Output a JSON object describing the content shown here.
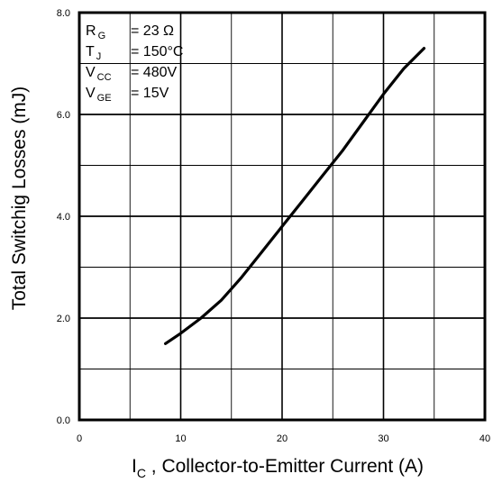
{
  "chart_data": {
    "type": "line",
    "title": "",
    "xlabel_main": "I",
    "xlabel_sub": "C",
    "xlabel_rest": " , Collector-to-Emitter Current (A)",
    "ylabel": "Total Switchig Losses (mJ)",
    "xlim": [
      0,
      40
    ],
    "ylim": [
      0,
      8
    ],
    "x_ticks": [
      0,
      10,
      20,
      30,
      40
    ],
    "x_tick_labels": [
      "0",
      "10",
      "20",
      "30",
      "40"
    ],
    "y_ticks": [
      0,
      2,
      4,
      6,
      8
    ],
    "y_tick_labels": [
      "0.0",
      "2.0",
      "4.0",
      "6.0",
      "8.0"
    ],
    "grid": true,
    "conditions": [
      {
        "symbol": "R",
        "sub": "G",
        "value": "= 23 Ω"
      },
      {
        "symbol": "T",
        "sub": "J",
        "value": "= 150°C"
      },
      {
        "symbol": "V",
        "sub": "CC",
        "value": "= 480V"
      },
      {
        "symbol": "V",
        "sub": "GE",
        "value": "= 15V"
      }
    ],
    "series": [
      {
        "x": [
          8.5,
          10,
          12,
          14,
          16,
          18,
          20,
          22,
          24,
          26,
          28,
          30,
          32,
          34
        ],
        "y": [
          1.5,
          1.7,
          2.0,
          2.35,
          2.8,
          3.3,
          3.8,
          4.3,
          4.8,
          5.3,
          5.85,
          6.4,
          6.9,
          7.3
        ]
      }
    ]
  }
}
